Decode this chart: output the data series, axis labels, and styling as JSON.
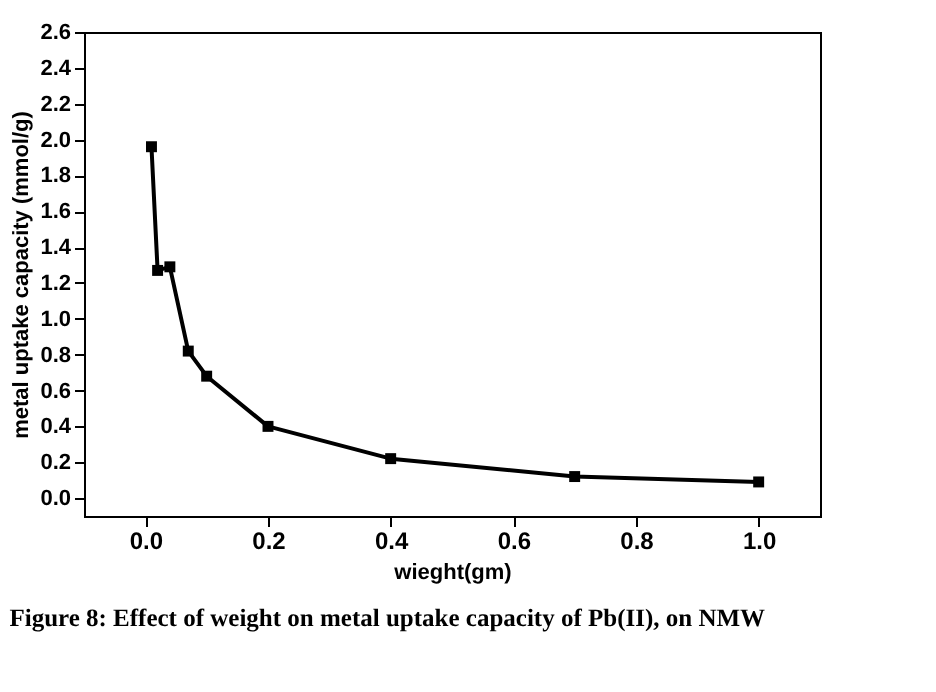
{
  "chart_data": {
    "type": "line",
    "title": "Figure 8: Effect of weight on metal uptake capacity of Pb(II), on NMW",
    "xlabel": "wieght(gm)",
    "ylabel": "metal uptake capacity (mmol/g)",
    "x": [
      0.01,
      0.02,
      0.04,
      0.07,
      0.1,
      0.2,
      0.4,
      0.7,
      1.0
    ],
    "series": [
      {
        "color": "#000000",
        "values": [
          1.96,
          1.27,
          1.29,
          0.82,
          0.68,
          0.4,
          0.22,
          0.12,
          0.09
        ]
      }
    ],
    "xlim": [
      -0.1,
      1.1
    ],
    "xticks": [
      {
        "value": 0,
        "label": "0.0"
      },
      0.2,
      0.4,
      0.6,
      0.8,
      {
        "value": 1,
        "label": "1.0"
      }
    ],
    "ylim": [
      -0.1,
      2.6
    ],
    "yticks": [
      {
        "value": 0,
        "label": "0.0"
      },
      0.2,
      0.4,
      0.6,
      0.8,
      {
        "value": 1,
        "label": "1.0"
      },
      1.2,
      1.4,
      1.6,
      1.8,
      {
        "value": 2,
        "label": "2.0"
      },
      2.2,
      2.4,
      2.6
    ],
    "marker": "square",
    "line_style": "solid"
  }
}
